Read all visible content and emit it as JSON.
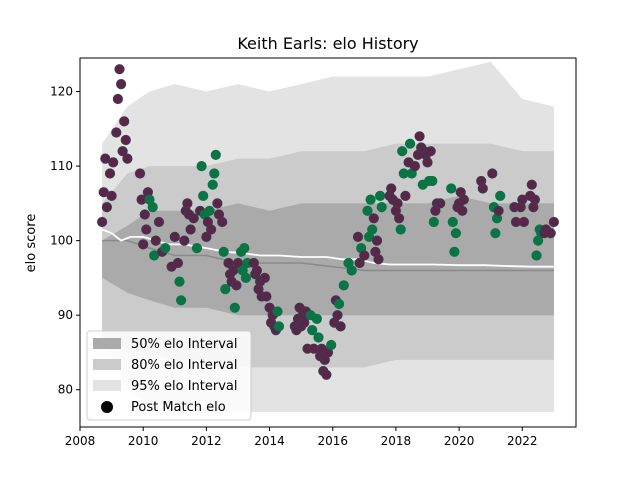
{
  "chart_data": {
    "type": "scatter",
    "title": "Keith Earls: elo History",
    "xlabel": "",
    "ylabel": "elo score",
    "xlim": [
      2008.0,
      2023.7
    ],
    "ylim": [
      75.0,
      124.5
    ],
    "xticks": [
      2008,
      2010,
      2012,
      2014,
      2016,
      2018,
      2020,
      2022
    ],
    "yticks": [
      80,
      90,
      100,
      110,
      120
    ],
    "grid": false,
    "legend": {
      "placement": "lower-left",
      "entries": [
        "50% elo Interval",
        "80% elo Interval",
        "95% elo Interval",
        "Post Match elo"
      ]
    },
    "colors": {
      "band95": "#e3e3e3",
      "band80": "#cbcbcb",
      "band50": "#aaaaaa",
      "median_line": "#8a8a8a",
      "mean_line": "#ffffff",
      "dot_purple": "#5c2548",
      "dot_green": "#0a7446",
      "dot_edge": "#3b3b4f"
    },
    "bands": {
      "x": [
        2008.7,
        2009.5,
        2010.2,
        2011.0,
        2012.0,
        2013.0,
        2014.0,
        2015.0,
        2016.0,
        2017.0,
        2018.0,
        2019.0,
        2020.0,
        2021.0,
        2022.0,
        2023.0
      ],
      "p95_upper": [
        113,
        118,
        120,
        121,
        120,
        121,
        120,
        121,
        122,
        122,
        122,
        122,
        123,
        124,
        119,
        118
      ],
      "p95_lower": [
        87,
        80,
        78,
        78,
        77,
        77,
        77,
        77,
        77,
        77,
        77,
        77,
        77,
        77,
        77,
        77
      ],
      "p80_upper": [
        105,
        109,
        110,
        110,
        110,
        111,
        111,
        112,
        112,
        112,
        113,
        113,
        113,
        113,
        112,
        112
      ],
      "p80_lower": [
        87,
        85,
        85,
        84,
        84,
        83,
        83,
        83,
        83,
        83,
        84,
        84,
        84,
        84,
        84,
        84
      ],
      "p50_upper": [
        100,
        102,
        104,
        104,
        104,
        105,
        104,
        105,
        105,
        105,
        105,
        105,
        106,
        105,
        105,
        105
      ],
      "p50_lower": [
        95,
        93,
        92,
        91,
        91,
        90,
        90,
        90,
        90,
        90,
        90,
        90,
        90,
        90,
        90,
        90
      ],
      "median": [
        100,
        100,
        99,
        98,
        98,
        97,
        97,
        97,
        96.5,
        96,
        96,
        96,
        96,
        96,
        96,
        96
      ]
    },
    "mean_line": {
      "x": [
        2008.7,
        2009.0,
        2009.3,
        2009.6,
        2010.0,
        2010.4,
        2010.8,
        2011.3,
        2012.0,
        2012.6,
        2013.2,
        2013.7,
        2014.3,
        2015.0,
        2015.8,
        2016.3,
        2016.8,
        2017.3,
        2017.8,
        2018.5,
        2019.2,
        2020.0,
        2020.8,
        2021.5,
        2022.3,
        2023.0
      ],
      "y": [
        101.5,
        101,
        100,
        100.5,
        100.5,
        100,
        99.5,
        99.5,
        99,
        98.5,
        98.3,
        98,
        98,
        97.8,
        97.8,
        97.5,
        97.5,
        97,
        96.8,
        96.8,
        96.8,
        96.7,
        96.7,
        96.6,
        96.5,
        96.5
      ]
    },
    "post_match": [
      {
        "x": 2008.7,
        "y": 102.5,
        "c": "purple"
      },
      {
        "x": 2008.75,
        "y": 106.5,
        "c": "purple"
      },
      {
        "x": 2008.8,
        "y": 111,
        "c": "purple"
      },
      {
        "x": 2008.85,
        "y": 104.5,
        "c": "purple"
      },
      {
        "x": 2008.95,
        "y": 109,
        "c": "purple"
      },
      {
        "x": 2009.0,
        "y": 106,
        "c": "purple"
      },
      {
        "x": 2009.05,
        "y": 110.5,
        "c": "purple"
      },
      {
        "x": 2009.15,
        "y": 114.5,
        "c": "purple"
      },
      {
        "x": 2009.2,
        "y": 119,
        "c": "purple"
      },
      {
        "x": 2009.25,
        "y": 123,
        "c": "purple"
      },
      {
        "x": 2009.3,
        "y": 121,
        "c": "purple"
      },
      {
        "x": 2009.35,
        "y": 112,
        "c": "purple"
      },
      {
        "x": 2009.4,
        "y": 116,
        "c": "purple"
      },
      {
        "x": 2009.45,
        "y": 113.5,
        "c": "purple"
      },
      {
        "x": 2009.5,
        "y": 111,
        "c": "purple"
      },
      {
        "x": 2009.9,
        "y": 109,
        "c": "purple"
      },
      {
        "x": 2009.95,
        "y": 105.5,
        "c": "purple"
      },
      {
        "x": 2010.0,
        "y": 99.5,
        "c": "purple"
      },
      {
        "x": 2010.05,
        "y": 103.5,
        "c": "purple"
      },
      {
        "x": 2010.1,
        "y": 101.5,
        "c": "purple"
      },
      {
        "x": 2010.15,
        "y": 106.5,
        "c": "purple"
      },
      {
        "x": 2010.2,
        "y": 105.5,
        "c": "green"
      },
      {
        "x": 2010.3,
        "y": 104.5,
        "c": "green"
      },
      {
        "x": 2010.35,
        "y": 98,
        "c": "green"
      },
      {
        "x": 2010.4,
        "y": 100,
        "c": "purple"
      },
      {
        "x": 2010.5,
        "y": 102.5,
        "c": "purple"
      },
      {
        "x": 2010.6,
        "y": 98.5,
        "c": "purple"
      },
      {
        "x": 2010.7,
        "y": 99,
        "c": "green"
      },
      {
        "x": 2010.9,
        "y": 96.5,
        "c": "purple"
      },
      {
        "x": 2011.0,
        "y": 100.5,
        "c": "purple"
      },
      {
        "x": 2011.1,
        "y": 97,
        "c": "purple"
      },
      {
        "x": 2011.15,
        "y": 94.5,
        "c": "green"
      },
      {
        "x": 2011.2,
        "y": 92,
        "c": "green"
      },
      {
        "x": 2011.3,
        "y": 100,
        "c": "purple"
      },
      {
        "x": 2011.35,
        "y": 104,
        "c": "purple"
      },
      {
        "x": 2011.4,
        "y": 105,
        "c": "purple"
      },
      {
        "x": 2011.45,
        "y": 103.5,
        "c": "purple"
      },
      {
        "x": 2011.5,
        "y": 101.5,
        "c": "purple"
      },
      {
        "x": 2011.6,
        "y": 103,
        "c": "purple"
      },
      {
        "x": 2011.7,
        "y": 99,
        "c": "green"
      },
      {
        "x": 2011.8,
        "y": 104,
        "c": "purple"
      },
      {
        "x": 2011.85,
        "y": 110,
        "c": "green"
      },
      {
        "x": 2011.9,
        "y": 106,
        "c": "green"
      },
      {
        "x": 2011.95,
        "y": 103.5,
        "c": "green"
      },
      {
        "x": 2012.0,
        "y": 100.5,
        "c": "purple"
      },
      {
        "x": 2012.05,
        "y": 102.5,
        "c": "purple"
      },
      {
        "x": 2012.1,
        "y": 104,
        "c": "green"
      },
      {
        "x": 2012.15,
        "y": 101.5,
        "c": "purple"
      },
      {
        "x": 2012.2,
        "y": 107.5,
        "c": "green"
      },
      {
        "x": 2012.25,
        "y": 109,
        "c": "green"
      },
      {
        "x": 2012.3,
        "y": 111.5,
        "c": "green"
      },
      {
        "x": 2012.35,
        "y": 105,
        "c": "purple"
      },
      {
        "x": 2012.4,
        "y": 103.5,
        "c": "purple"
      },
      {
        "x": 2012.5,
        "y": 102.5,
        "c": "purple"
      },
      {
        "x": 2012.55,
        "y": 98.5,
        "c": "green"
      },
      {
        "x": 2012.6,
        "y": 93.5,
        "c": "green"
      },
      {
        "x": 2012.7,
        "y": 97,
        "c": "purple"
      },
      {
        "x": 2012.75,
        "y": 95.5,
        "c": "purple"
      },
      {
        "x": 2012.8,
        "y": 94.5,
        "c": "purple"
      },
      {
        "x": 2012.85,
        "y": 96,
        "c": "purple"
      },
      {
        "x": 2012.9,
        "y": 91,
        "c": "green"
      },
      {
        "x": 2012.95,
        "y": 94,
        "c": "purple"
      },
      {
        "x": 2013.0,
        "y": 97,
        "c": "purple"
      },
      {
        "x": 2013.1,
        "y": 98.5,
        "c": "green"
      },
      {
        "x": 2013.15,
        "y": 96,
        "c": "green"
      },
      {
        "x": 2013.2,
        "y": 99,
        "c": "green"
      },
      {
        "x": 2013.25,
        "y": 95,
        "c": "green"
      },
      {
        "x": 2013.3,
        "y": 97,
        "c": "green"
      },
      {
        "x": 2013.5,
        "y": 97,
        "c": "purple"
      },
      {
        "x": 2013.55,
        "y": 95.5,
        "c": "purple"
      },
      {
        "x": 2013.6,
        "y": 96,
        "c": "purple"
      },
      {
        "x": 2013.65,
        "y": 93.5,
        "c": "purple"
      },
      {
        "x": 2013.7,
        "y": 94.5,
        "c": "purple"
      },
      {
        "x": 2013.75,
        "y": 92.5,
        "c": "purple"
      },
      {
        "x": 2013.85,
        "y": 95,
        "c": "purple"
      },
      {
        "x": 2013.9,
        "y": 92.5,
        "c": "purple"
      },
      {
        "x": 2014.0,
        "y": 91,
        "c": "purple"
      },
      {
        "x": 2014.05,
        "y": 89,
        "c": "purple"
      },
      {
        "x": 2014.1,
        "y": 90,
        "c": "purple"
      },
      {
        "x": 2014.15,
        "y": 88.5,
        "c": "purple"
      },
      {
        "x": 2014.2,
        "y": 88,
        "c": "purple"
      },
      {
        "x": 2014.25,
        "y": 90.5,
        "c": "green"
      },
      {
        "x": 2014.3,
        "y": 88.5,
        "c": "green"
      },
      {
        "x": 2014.8,
        "y": 88.5,
        "c": "purple"
      },
      {
        "x": 2014.85,
        "y": 88,
        "c": "purple"
      },
      {
        "x": 2014.9,
        "y": 89.5,
        "c": "purple"
      },
      {
        "x": 2014.95,
        "y": 91,
        "c": "purple"
      },
      {
        "x": 2015.0,
        "y": 88.5,
        "c": "purple"
      },
      {
        "x": 2015.05,
        "y": 90,
        "c": "purple"
      },
      {
        "x": 2015.1,
        "y": 89,
        "c": "purple"
      },
      {
        "x": 2015.15,
        "y": 90.5,
        "c": "purple"
      },
      {
        "x": 2015.2,
        "y": 85.5,
        "c": "purple"
      },
      {
        "x": 2015.3,
        "y": 90,
        "c": "green"
      },
      {
        "x": 2015.35,
        "y": 88,
        "c": "green"
      },
      {
        "x": 2015.4,
        "y": 85.5,
        "c": "purple"
      },
      {
        "x": 2015.5,
        "y": 89.5,
        "c": "green"
      },
      {
        "x": 2015.55,
        "y": 87,
        "c": "green"
      },
      {
        "x": 2015.6,
        "y": 84.5,
        "c": "purple"
      },
      {
        "x": 2015.65,
        "y": 85.5,
        "c": "purple"
      },
      {
        "x": 2015.7,
        "y": 82.5,
        "c": "purple"
      },
      {
        "x": 2015.75,
        "y": 84,
        "c": "purple"
      },
      {
        "x": 2015.8,
        "y": 82,
        "c": "purple"
      },
      {
        "x": 2015.85,
        "y": 85,
        "c": "purple"
      },
      {
        "x": 2015.95,
        "y": 86,
        "c": "green"
      },
      {
        "x": 2016.05,
        "y": 89,
        "c": "purple"
      },
      {
        "x": 2016.1,
        "y": 92,
        "c": "purple"
      },
      {
        "x": 2016.15,
        "y": 90,
        "c": "purple"
      },
      {
        "x": 2016.2,
        "y": 91.5,
        "c": "green"
      },
      {
        "x": 2016.25,
        "y": 88.5,
        "c": "purple"
      },
      {
        "x": 2016.35,
        "y": 94,
        "c": "green"
      },
      {
        "x": 2016.5,
        "y": 97,
        "c": "green"
      },
      {
        "x": 2016.6,
        "y": 96,
        "c": "green"
      },
      {
        "x": 2016.8,
        "y": 100.5,
        "c": "purple"
      },
      {
        "x": 2016.85,
        "y": 97,
        "c": "purple"
      },
      {
        "x": 2016.9,
        "y": 99,
        "c": "green"
      },
      {
        "x": 2017.0,
        "y": 98,
        "c": "purple"
      },
      {
        "x": 2017.1,
        "y": 104,
        "c": "green"
      },
      {
        "x": 2017.15,
        "y": 100.5,
        "c": "green"
      },
      {
        "x": 2017.2,
        "y": 105.5,
        "c": "green"
      },
      {
        "x": 2017.25,
        "y": 101.5,
        "c": "green"
      },
      {
        "x": 2017.3,
        "y": 103,
        "c": "purple"
      },
      {
        "x": 2017.35,
        "y": 98.5,
        "c": "purple"
      },
      {
        "x": 2017.4,
        "y": 100,
        "c": "purple"
      },
      {
        "x": 2017.45,
        "y": 97.5,
        "c": "purple"
      },
      {
        "x": 2017.5,
        "y": 106,
        "c": "green"
      },
      {
        "x": 2017.55,
        "y": 104.5,
        "c": "green"
      },
      {
        "x": 2017.8,
        "y": 106,
        "c": "purple"
      },
      {
        "x": 2017.85,
        "y": 107,
        "c": "purple"
      },
      {
        "x": 2017.9,
        "y": 105.5,
        "c": "purple"
      },
      {
        "x": 2018.0,
        "y": 104,
        "c": "purple"
      },
      {
        "x": 2018.05,
        "y": 105,
        "c": "purple"
      },
      {
        "x": 2018.1,
        "y": 103,
        "c": "purple"
      },
      {
        "x": 2018.15,
        "y": 101.5,
        "c": "green"
      },
      {
        "x": 2018.2,
        "y": 112,
        "c": "green"
      },
      {
        "x": 2018.25,
        "y": 109,
        "c": "green"
      },
      {
        "x": 2018.3,
        "y": 106,
        "c": "purple"
      },
      {
        "x": 2018.4,
        "y": 110.5,
        "c": "purple"
      },
      {
        "x": 2018.45,
        "y": 113,
        "c": "green"
      },
      {
        "x": 2018.5,
        "y": 109,
        "c": "green"
      },
      {
        "x": 2018.6,
        "y": 110,
        "c": "purple"
      },
      {
        "x": 2018.7,
        "y": 111.5,
        "c": "purple"
      },
      {
        "x": 2018.75,
        "y": 114,
        "c": "purple"
      },
      {
        "x": 2018.8,
        "y": 112.5,
        "c": "purple"
      },
      {
        "x": 2018.85,
        "y": 107.5,
        "c": "green"
      },
      {
        "x": 2018.9,
        "y": 112,
        "c": "purple"
      },
      {
        "x": 2018.95,
        "y": 111.5,
        "c": "purple"
      },
      {
        "x": 2019.0,
        "y": 110.5,
        "c": "purple"
      },
      {
        "x": 2019.05,
        "y": 108,
        "c": "green"
      },
      {
        "x": 2019.1,
        "y": 112,
        "c": "purple"
      },
      {
        "x": 2019.15,
        "y": 108,
        "c": "green"
      },
      {
        "x": 2019.2,
        "y": 102.5,
        "c": "green"
      },
      {
        "x": 2019.25,
        "y": 104,
        "c": "purple"
      },
      {
        "x": 2019.3,
        "y": 105,
        "c": "purple"
      },
      {
        "x": 2019.4,
        "y": 105,
        "c": "purple"
      },
      {
        "x": 2019.75,
        "y": 107,
        "c": "green"
      },
      {
        "x": 2019.8,
        "y": 102.5,
        "c": "green"
      },
      {
        "x": 2019.85,
        "y": 98.5,
        "c": "green"
      },
      {
        "x": 2019.9,
        "y": 101,
        "c": "green"
      },
      {
        "x": 2019.95,
        "y": 104.5,
        "c": "purple"
      },
      {
        "x": 2020.0,
        "y": 105,
        "c": "purple"
      },
      {
        "x": 2020.05,
        "y": 106.5,
        "c": "purple"
      },
      {
        "x": 2020.1,
        "y": 104,
        "c": "purple"
      },
      {
        "x": 2020.15,
        "y": 105.5,
        "c": "purple"
      },
      {
        "x": 2020.7,
        "y": 108,
        "c": "purple"
      },
      {
        "x": 2020.75,
        "y": 107,
        "c": "purple"
      },
      {
        "x": 2021.05,
        "y": 109,
        "c": "purple"
      },
      {
        "x": 2021.1,
        "y": 104.5,
        "c": "green"
      },
      {
        "x": 2021.15,
        "y": 101,
        "c": "green"
      },
      {
        "x": 2021.2,
        "y": 103,
        "c": "green"
      },
      {
        "x": 2021.25,
        "y": 104,
        "c": "purple"
      },
      {
        "x": 2021.3,
        "y": 106,
        "c": "green"
      },
      {
        "x": 2021.75,
        "y": 104.5,
        "c": "purple"
      },
      {
        "x": 2021.8,
        "y": 102.5,
        "c": "purple"
      },
      {
        "x": 2021.95,
        "y": 104.5,
        "c": "purple"
      },
      {
        "x": 2022.0,
        "y": 105.5,
        "c": "purple"
      },
      {
        "x": 2022.05,
        "y": 102.5,
        "c": "purple"
      },
      {
        "x": 2022.25,
        "y": 106,
        "c": "purple"
      },
      {
        "x": 2022.3,
        "y": 107.5,
        "c": "purple"
      },
      {
        "x": 2022.35,
        "y": 104.5,
        "c": "purple"
      },
      {
        "x": 2022.4,
        "y": 105.5,
        "c": "purple"
      },
      {
        "x": 2022.45,
        "y": 98,
        "c": "green"
      },
      {
        "x": 2022.5,
        "y": 100,
        "c": "green"
      },
      {
        "x": 2022.55,
        "y": 101.5,
        "c": "green"
      },
      {
        "x": 2022.6,
        "y": 101,
        "c": "green"
      },
      {
        "x": 2022.7,
        "y": 101,
        "c": "purple"
      },
      {
        "x": 2022.75,
        "y": 101.5,
        "c": "purple"
      },
      {
        "x": 2022.9,
        "y": 101,
        "c": "purple"
      },
      {
        "x": 2023.0,
        "y": 102.5,
        "c": "purple"
      }
    ]
  }
}
